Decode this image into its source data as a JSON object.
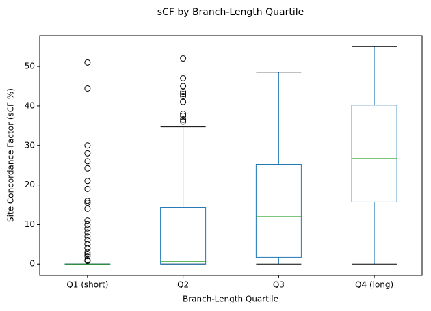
{
  "chart_data": {
    "type": "box",
    "title": "sCF by Branch-Length Quartile",
    "x_label": "Branch-Length Quartile",
    "y_label": "Site Concordance Factor (sCF %)",
    "categories": [
      "Q1 (short)",
      "Q2",
      "Q3",
      "Q4 (long)"
    ],
    "boxes": [
      {
        "whislo": 0,
        "q1": 0,
        "median": 0,
        "q3": 0,
        "whishi": 0,
        "fliers": [
          51,
          44.4,
          30,
          28,
          26,
          24.2,
          21,
          19,
          16,
          15.5,
          14,
          11,
          10,
          9,
          8,
          7,
          6,
          5,
          4,
          3,
          2.5,
          2,
          1,
          0.8
        ]
      },
      {
        "whislo": 0,
        "q1": 0,
        "median": 0.6,
        "q3": 14.3,
        "whishi": 34.7,
        "fliers": [
          52,
          47,
          45,
          43.5,
          43,
          42.5,
          41,
          38,
          37.5,
          36.5,
          36
        ]
      },
      {
        "whislo": 0,
        "q1": 1.7,
        "median": 12,
        "q3": 25.2,
        "whishi": 48.5,
        "fliers": []
      },
      {
        "whislo": 0,
        "q1": 15.7,
        "median": 26.7,
        "q3": 40.2,
        "whishi": 55,
        "fliers": []
      }
    ],
    "box_color": "#1f77b4",
    "median_color": "#2ca02c",
    "ylim": [
      -2.9,
      57.8
    ],
    "yticks": [
      0,
      10,
      20,
      30,
      40,
      50
    ]
  }
}
